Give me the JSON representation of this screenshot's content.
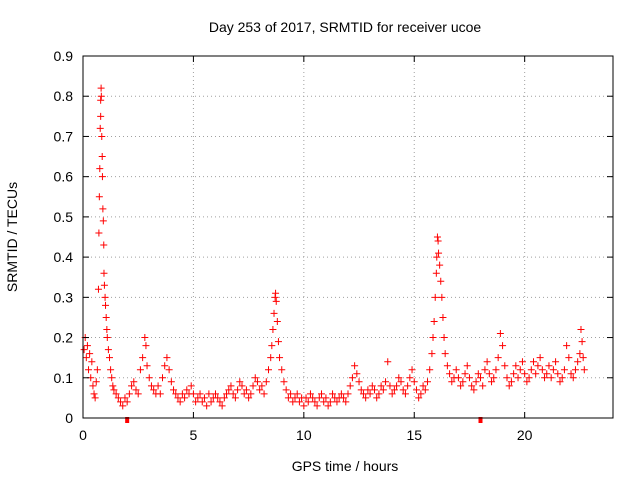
{
  "chart_data": {
    "type": "scatter",
    "title": "Day 253 of 2017, SRMTID for receiver ucoe",
    "xlabel": "GPS time / hours",
    "ylabel": "SRMTID / TECUs",
    "xlim": [
      0,
      24
    ],
    "ylim": [
      0,
      0.9
    ],
    "xticks": [
      0,
      5,
      10,
      15,
      20
    ],
    "yticks": [
      0,
      0.1,
      0.2,
      0.3,
      0.4,
      0.5,
      0.6,
      0.7,
      0.8,
      0.9
    ],
    "grid": true,
    "marker": "+",
    "series_color": "#ff0000",
    "axis_marks": [
      2.0,
      18.0
    ],
    "series": [
      {
        "name": "SRMTID",
        "points": [
          [
            0.05,
            0.17
          ],
          [
            0.1,
            0.2
          ],
          [
            0.15,
            0.15
          ],
          [
            0.2,
            0.18
          ],
          [
            0.25,
            0.12
          ],
          [
            0.3,
            0.16
          ],
          [
            0.35,
            0.1
          ],
          [
            0.4,
            0.14
          ],
          [
            0.45,
            0.08
          ],
          [
            0.5,
            0.06
          ],
          [
            0.55,
            0.05
          ],
          [
            0.6,
            0.09
          ],
          [
            0.65,
            0.12
          ],
          [
            0.7,
            0.32
          ],
          [
            0.72,
            0.46
          ],
          [
            0.74,
            0.55
          ],
          [
            0.76,
            0.62
          ],
          [
            0.78,
            0.72
          ],
          [
            0.8,
            0.75
          ],
          [
            0.8,
            0.79
          ],
          [
            0.82,
            0.82
          ],
          [
            0.83,
            0.8
          ],
          [
            0.85,
            0.7
          ],
          [
            0.87,
            0.65
          ],
          [
            0.88,
            0.6
          ],
          [
            0.9,
            0.52
          ],
          [
            0.92,
            0.49
          ],
          [
            0.94,
            0.43
          ],
          [
            0.95,
            0.36
          ],
          [
            0.97,
            0.33
          ],
          [
            1.0,
            0.3
          ],
          [
            1.02,
            0.28
          ],
          [
            1.05,
            0.25
          ],
          [
            1.08,
            0.22
          ],
          [
            1.1,
            0.2
          ],
          [
            1.15,
            0.17
          ],
          [
            1.2,
            0.15
          ],
          [
            1.25,
            0.12
          ],
          [
            1.3,
            0.1
          ],
          [
            1.35,
            0.08
          ],
          [
            1.4,
            0.07
          ],
          [
            1.5,
            0.06
          ],
          [
            1.6,
            0.05
          ],
          [
            1.7,
            0.04
          ],
          [
            1.8,
            0.03
          ],
          [
            1.9,
            0.05
          ],
          [
            2.0,
            0.04
          ],
          [
            2.1,
            0.06
          ],
          [
            2.2,
            0.08
          ],
          [
            2.3,
            0.09
          ],
          [
            2.4,
            0.07
          ],
          [
            2.5,
            0.06
          ],
          [
            2.6,
            0.12
          ],
          [
            2.7,
            0.15
          ],
          [
            2.8,
            0.2
          ],
          [
            2.85,
            0.18
          ],
          [
            2.9,
            0.13
          ],
          [
            3.0,
            0.1
          ],
          [
            3.1,
            0.08
          ],
          [
            3.2,
            0.07
          ],
          [
            3.3,
            0.06
          ],
          [
            3.4,
            0.08
          ],
          [
            3.5,
            0.06
          ],
          [
            3.6,
            0.1
          ],
          [
            3.7,
            0.13
          ],
          [
            3.8,
            0.15
          ],
          [
            3.9,
            0.12
          ],
          [
            4.0,
            0.09
          ],
          [
            4.1,
            0.07
          ],
          [
            4.2,
            0.06
          ],
          [
            4.3,
            0.05
          ],
          [
            4.4,
            0.04
          ],
          [
            4.5,
            0.06
          ],
          [
            4.6,
            0.05
          ],
          [
            4.7,
            0.07
          ],
          [
            4.8,
            0.06
          ],
          [
            4.9,
            0.08
          ],
          [
            5.0,
            0.06
          ],
          [
            5.1,
            0.04
          ],
          [
            5.2,
            0.05
          ],
          [
            5.3,
            0.06
          ],
          [
            5.4,
            0.04
          ],
          [
            5.5,
            0.05
          ],
          [
            5.6,
            0.03
          ],
          [
            5.7,
            0.06
          ],
          [
            5.8,
            0.04
          ],
          [
            5.9,
            0.05
          ],
          [
            6.0,
            0.06
          ],
          [
            6.1,
            0.05
          ],
          [
            6.2,
            0.04
          ],
          [
            6.3,
            0.03
          ],
          [
            6.4,
            0.05
          ],
          [
            6.5,
            0.06
          ],
          [
            6.6,
            0.07
          ],
          [
            6.7,
            0.08
          ],
          [
            6.8,
            0.06
          ],
          [
            6.9,
            0.05
          ],
          [
            7.0,
            0.07
          ],
          [
            7.1,
            0.09
          ],
          [
            7.2,
            0.08
          ],
          [
            7.3,
            0.06
          ],
          [
            7.4,
            0.07
          ],
          [
            7.5,
            0.05
          ],
          [
            7.6,
            0.06
          ],
          [
            7.7,
            0.08
          ],
          [
            7.8,
            0.1
          ],
          [
            7.9,
            0.09
          ],
          [
            8.0,
            0.07
          ],
          [
            8.1,
            0.08
          ],
          [
            8.2,
            0.06
          ],
          [
            8.3,
            0.09
          ],
          [
            8.4,
            0.12
          ],
          [
            8.5,
            0.15
          ],
          [
            8.55,
            0.18
          ],
          [
            8.6,
            0.22
          ],
          [
            8.65,
            0.26
          ],
          [
            8.7,
            0.3
          ],
          [
            8.72,
            0.31
          ],
          [
            8.75,
            0.29
          ],
          [
            8.8,
            0.24
          ],
          [
            8.85,
            0.19
          ],
          [
            8.9,
            0.15
          ],
          [
            9.0,
            0.12
          ],
          [
            9.1,
            0.09
          ],
          [
            9.2,
            0.07
          ],
          [
            9.3,
            0.05
          ],
          [
            9.4,
            0.06
          ],
          [
            9.5,
            0.04
          ],
          [
            9.6,
            0.05
          ],
          [
            9.7,
            0.06
          ],
          [
            9.8,
            0.04
          ],
          [
            9.9,
            0.05
          ],
          [
            10.0,
            0.03
          ],
          [
            10.1,
            0.05
          ],
          [
            10.2,
            0.04
          ],
          [
            10.3,
            0.06
          ],
          [
            10.4,
            0.05
          ],
          [
            10.5,
            0.04
          ],
          [
            10.6,
            0.03
          ],
          [
            10.7,
            0.05
          ],
          [
            10.8,
            0.06
          ],
          [
            10.9,
            0.04
          ],
          [
            11.0,
            0.05
          ],
          [
            11.1,
            0.03
          ],
          [
            11.2,
            0.04
          ],
          [
            11.3,
            0.06
          ],
          [
            11.4,
            0.05
          ],
          [
            11.5,
            0.04
          ],
          [
            11.6,
            0.05
          ],
          [
            11.7,
            0.06
          ],
          [
            11.8,
            0.05
          ],
          [
            11.9,
            0.04
          ],
          [
            12.0,
            0.06
          ],
          [
            12.1,
            0.08
          ],
          [
            12.2,
            0.1
          ],
          [
            12.3,
            0.13
          ],
          [
            12.4,
            0.11
          ],
          [
            12.5,
            0.09
          ],
          [
            12.6,
            0.07
          ],
          [
            12.7,
            0.06
          ],
          [
            12.8,
            0.05
          ],
          [
            12.9,
            0.07
          ],
          [
            13.0,
            0.06
          ],
          [
            13.1,
            0.08
          ],
          [
            13.2,
            0.07
          ],
          [
            13.3,
            0.05
          ],
          [
            13.4,
            0.06
          ],
          [
            13.5,
            0.08
          ],
          [
            13.6,
            0.07
          ],
          [
            13.7,
            0.09
          ],
          [
            13.8,
            0.14
          ],
          [
            13.9,
            0.08
          ],
          [
            14.0,
            0.06
          ],
          [
            14.1,
            0.07
          ],
          [
            14.2,
            0.08
          ],
          [
            14.3,
            0.1
          ],
          [
            14.4,
            0.09
          ],
          [
            14.5,
            0.07
          ],
          [
            14.6,
            0.06
          ],
          [
            14.7,
            0.08
          ],
          [
            14.8,
            0.1
          ],
          [
            14.9,
            0.12
          ],
          [
            15.0,
            0.09
          ],
          [
            15.1,
            0.07
          ],
          [
            15.2,
            0.05
          ],
          [
            15.3,
            0.06
          ],
          [
            15.4,
            0.08
          ],
          [
            15.5,
            0.07
          ],
          [
            15.6,
            0.09
          ],
          [
            15.7,
            0.12
          ],
          [
            15.8,
            0.16
          ],
          [
            15.85,
            0.2
          ],
          [
            15.9,
            0.24
          ],
          [
            15.95,
            0.3
          ],
          [
            16.0,
            0.36
          ],
          [
            16.02,
            0.4
          ],
          [
            16.05,
            0.45
          ],
          [
            16.08,
            0.44
          ],
          [
            16.1,
            0.41
          ],
          [
            16.15,
            0.38
          ],
          [
            16.2,
            0.34
          ],
          [
            16.25,
            0.3
          ],
          [
            16.3,
            0.25
          ],
          [
            16.35,
            0.2
          ],
          [
            16.4,
            0.16
          ],
          [
            16.5,
            0.13
          ],
          [
            16.6,
            0.11
          ],
          [
            16.7,
            0.09
          ],
          [
            16.8,
            0.1
          ],
          [
            16.9,
            0.12
          ],
          [
            17.0,
            0.1
          ],
          [
            17.1,
            0.08
          ],
          [
            17.2,
            0.09
          ],
          [
            17.3,
            0.11
          ],
          [
            17.4,
            0.13
          ],
          [
            17.5,
            0.1
          ],
          [
            17.6,
            0.08
          ],
          [
            17.7,
            0.07
          ],
          [
            17.8,
            0.09
          ],
          [
            17.9,
            0.11
          ],
          [
            18.0,
            0.1
          ],
          [
            18.1,
            0.08
          ],
          [
            18.2,
            0.12
          ],
          [
            18.3,
            0.14
          ],
          [
            18.4,
            0.11
          ],
          [
            18.5,
            0.09
          ],
          [
            18.6,
            0.1
          ],
          [
            18.7,
            0.12
          ],
          [
            18.8,
            0.15
          ],
          [
            18.9,
            0.21
          ],
          [
            19.0,
            0.18
          ],
          [
            19.1,
            0.13
          ],
          [
            19.2,
            0.1
          ],
          [
            19.3,
            0.08
          ],
          [
            19.4,
            0.09
          ],
          [
            19.5,
            0.11
          ],
          [
            19.6,
            0.13
          ],
          [
            19.7,
            0.1
          ],
          [
            19.8,
            0.12
          ],
          [
            19.9,
            0.14
          ],
          [
            20.0,
            0.11
          ],
          [
            20.1,
            0.09
          ],
          [
            20.2,
            0.1
          ],
          [
            20.3,
            0.12
          ],
          [
            20.4,
            0.14
          ],
          [
            20.5,
            0.11
          ],
          [
            20.6,
            0.13
          ],
          [
            20.7,
            0.15
          ],
          [
            20.8,
            0.12
          ],
          [
            20.9,
            0.1
          ],
          [
            21.0,
            0.11
          ],
          [
            21.1,
            0.13
          ],
          [
            21.2,
            0.1
          ],
          [
            21.3,
            0.12
          ],
          [
            21.4,
            0.14
          ],
          [
            21.5,
            0.11
          ],
          [
            21.6,
            0.09
          ],
          [
            21.7,
            0.1
          ],
          [
            21.8,
            0.12
          ],
          [
            21.9,
            0.18
          ],
          [
            22.0,
            0.15
          ],
          [
            22.1,
            0.11
          ],
          [
            22.2,
            0.1
          ],
          [
            22.3,
            0.12
          ],
          [
            22.4,
            0.14
          ],
          [
            22.5,
            0.16
          ],
          [
            22.55,
            0.22
          ],
          [
            22.6,
            0.19
          ],
          [
            22.65,
            0.15
          ],
          [
            22.7,
            0.12
          ]
        ]
      }
    ]
  }
}
